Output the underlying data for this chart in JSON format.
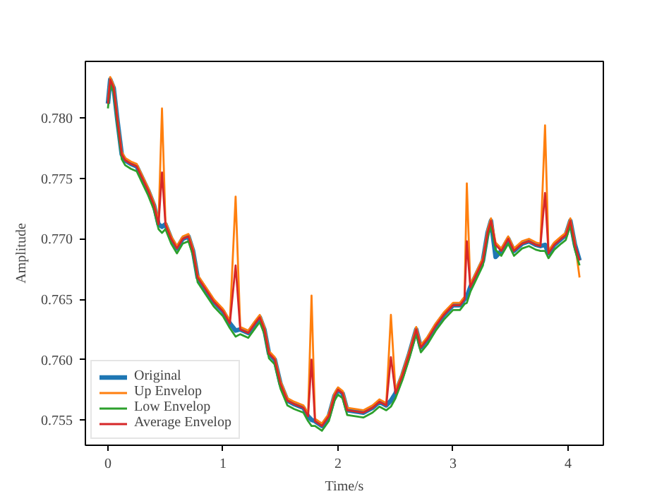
{
  "chart_data": {
    "type": "line",
    "xlabel": "Time/s",
    "ylabel": "Amplitude",
    "xlim": [
      -0.196,
      4.307
    ],
    "ylim": [
      0.7529,
      0.7847
    ],
    "xticks": [
      0,
      1,
      2,
      3,
      4
    ],
    "yticks": [
      0.755,
      {
        "value": 0.76,
        "label": "0.760"
      },
      0.765,
      {
        "value": 0.77,
        "label": "0.770"
      },
      0.775,
      {
        "value": 0.78,
        "label": "0.780"
      }
    ],
    "grid": false,
    "legend": "bottom left",
    "line_style": "solid",
    "marker": "none",
    "x": [
      0,
      0.02,
      0.05,
      0.08,
      0.12,
      0.15,
      0.2,
      0.25,
      0.3,
      0.35,
      0.4,
      0.44,
      0.47,
      0.5,
      0.55,
      0.6,
      0.65,
      0.7,
      0.74,
      0.78,
      0.85,
      0.92,
      1.0,
      1.06,
      1.11,
      1.15,
      1.22,
      1.28,
      1.32,
      1.36,
      1.4,
      1.45,
      1.5,
      1.56,
      1.62,
      1.7,
      1.74,
      1.77,
      1.8,
      1.86,
      1.92,
      1.97,
      2.0,
      2.04,
      2.08,
      2.15,
      2.22,
      2.3,
      2.36,
      2.42,
      2.46,
      2.5,
      2.56,
      2.62,
      2.68,
      2.72,
      2.78,
      2.85,
      2.92,
      3.0,
      3.06,
      3.1,
      3.12,
      3.15,
      3.2,
      3.26,
      3.3,
      3.33,
      3.37,
      3.42,
      3.48,
      3.53,
      3.6,
      3.66,
      3.72,
      3.76,
      3.8,
      3.83,
      3.88,
      3.94,
      3.98,
      4.02,
      4.06,
      4.1
    ],
    "series": [
      {
        "name": "Original",
        "color": "#1f77b4",
        "values": [
          0.7812,
          0.7832,
          0.7825,
          0.78,
          0.777,
          0.7765,
          0.7762,
          0.776,
          0.775,
          0.774,
          0.7728,
          0.7712,
          0.771,
          0.7712,
          0.77,
          0.7692,
          0.77,
          0.7702,
          0.769,
          0.7668,
          0.7658,
          0.7648,
          0.764,
          0.763,
          0.7624,
          0.7625,
          0.7622,
          0.763,
          0.7635,
          0.7625,
          0.7605,
          0.76,
          0.758,
          0.7566,
          0.7563,
          0.756,
          0.7553,
          0.755,
          0.7549,
          0.7545,
          0.7553,
          0.757,
          0.7575,
          0.7572,
          0.7558,
          0.7557,
          0.7556,
          0.756,
          0.7565,
          0.7562,
          0.7566,
          0.7572,
          0.7587,
          0.7605,
          0.7625,
          0.761,
          0.7617,
          0.7628,
          0.7637,
          0.7645,
          0.7645,
          0.765,
          0.7652,
          0.766,
          0.767,
          0.7682,
          0.7705,
          0.7715,
          0.7685,
          0.769,
          0.77,
          0.769,
          0.7696,
          0.7698,
          0.7695,
          0.7694,
          0.7695,
          0.7688,
          0.7695,
          0.77,
          0.7703,
          0.7715,
          0.7695,
          0.7682
        ]
      },
      {
        "name": "Up Envelop",
        "color": "#ff7f0e",
        "values": [
          0.7814,
          0.7834,
          0.7827,
          0.7802,
          0.7772,
          0.7767,
          0.7764,
          0.7762,
          0.7752,
          0.7742,
          0.773,
          0.7714,
          0.7808,
          0.7714,
          0.7702,
          0.7694,
          0.7702,
          0.7704,
          0.7692,
          0.767,
          0.766,
          0.765,
          0.7642,
          0.7632,
          0.7735,
          0.7627,
          0.7624,
          0.7632,
          0.7637,
          0.7627,
          0.7607,
          0.7602,
          0.7582,
          0.7568,
          0.7565,
          0.7562,
          0.7555,
          0.7653,
          0.7551,
          0.7547,
          0.7555,
          0.7572,
          0.7577,
          0.7574,
          0.756,
          0.7559,
          0.7558,
          0.7562,
          0.7567,
          0.7564,
          0.7637,
          0.7574,
          0.7589,
          0.7607,
          0.7627,
          0.7612,
          0.7619,
          0.763,
          0.7639,
          0.7647,
          0.7647,
          0.7652,
          0.7746,
          0.7662,
          0.7672,
          0.7684,
          0.7707,
          0.7717,
          0.7697,
          0.7692,
          0.7702,
          0.7692,
          0.7698,
          0.77,
          0.7697,
          0.7696,
          0.7794,
          0.769,
          0.7697,
          0.7702,
          0.7705,
          0.7717,
          0.7697,
          0.7668
        ]
      },
      {
        "name": "Low Envelop",
        "color": "#2ca02c",
        "values": [
          0.7808,
          0.7828,
          0.7821,
          0.7796,
          0.7766,
          0.7761,
          0.7758,
          0.7756,
          0.7746,
          0.7736,
          0.7724,
          0.7708,
          0.7705,
          0.7708,
          0.7696,
          0.7688,
          0.7696,
          0.7698,
          0.7686,
          0.7664,
          0.7654,
          0.7644,
          0.7636,
          0.7626,
          0.7619,
          0.7621,
          0.7618,
          0.7626,
          0.7631,
          0.7621,
          0.7601,
          0.7596,
          0.7576,
          0.7562,
          0.7559,
          0.7556,
          0.7549,
          0.7545,
          0.7545,
          0.7541,
          0.7549,
          0.7566,
          0.7571,
          0.7568,
          0.7554,
          0.7553,
          0.7552,
          0.7556,
          0.7561,
          0.7558,
          0.7561,
          0.7568,
          0.7583,
          0.7601,
          0.7621,
          0.7606,
          0.7613,
          0.7624,
          0.7633,
          0.7641,
          0.7641,
          0.7646,
          0.7647,
          0.7656,
          0.7666,
          0.7678,
          0.7701,
          0.7711,
          0.7691,
          0.7686,
          0.7696,
          0.7686,
          0.7692,
          0.7694,
          0.7691,
          0.769,
          0.769,
          0.7684,
          0.7691,
          0.7696,
          0.7699,
          0.7711,
          0.7691,
          0.7678
        ]
      },
      {
        "name": "Average Envelop",
        "color": "#d62728",
        "values": [
          0.7812,
          0.7832,
          0.7825,
          0.78,
          0.777,
          0.7765,
          0.7762,
          0.776,
          0.775,
          0.774,
          0.7728,
          0.7712,
          0.7755,
          0.7712,
          0.77,
          0.7692,
          0.77,
          0.7702,
          0.769,
          0.7668,
          0.7658,
          0.7648,
          0.764,
          0.763,
          0.7678,
          0.7625,
          0.7622,
          0.763,
          0.7635,
          0.7625,
          0.7605,
          0.76,
          0.758,
          0.7566,
          0.7563,
          0.756,
          0.7553,
          0.76,
          0.7549,
          0.7545,
          0.7553,
          0.757,
          0.7575,
          0.7572,
          0.7558,
          0.7557,
          0.7556,
          0.756,
          0.7565,
          0.7562,
          0.7602,
          0.7572,
          0.7587,
          0.7605,
          0.7625,
          0.761,
          0.7617,
          0.7628,
          0.7637,
          0.7645,
          0.7645,
          0.765,
          0.7698,
          0.766,
          0.767,
          0.7682,
          0.7705,
          0.7715,
          0.7695,
          0.769,
          0.77,
          0.769,
          0.7696,
          0.7698,
          0.7695,
          0.7694,
          0.7738,
          0.7688,
          0.7695,
          0.77,
          0.7703,
          0.7715,
          0.7695,
          0.7682
        ]
      }
    ]
  }
}
